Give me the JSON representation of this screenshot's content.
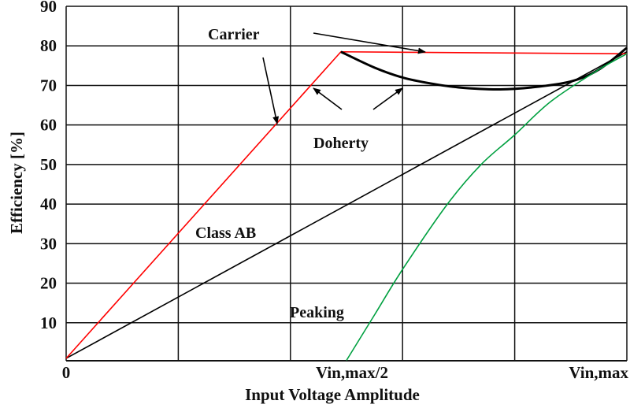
{
  "chart_data": {
    "type": "line",
    "title": "",
    "xlabel": "Input Voltage Amplitude",
    "ylabel": "Efficiency [%]",
    "xlim": [
      0,
      1
    ],
    "ylim": [
      0,
      90
    ],
    "grid": true,
    "x_tick_labels": [
      {
        "x": 0,
        "label": "0"
      },
      {
        "x": 0.5,
        "label": "Vin,max/2"
      },
      {
        "x": 1,
        "label": "Vin,max"
      }
    ],
    "x_gridlines": [
      0,
      0.2,
      0.4,
      0.6,
      0.8,
      1
    ],
    "y_ticks": [
      10,
      20,
      30,
      40,
      50,
      60,
      70,
      80,
      90
    ],
    "series": [
      {
        "name": "Class AB",
        "color": "#000000",
        "x": [
          0,
          1
        ],
        "y": [
          1,
          78.5
        ]
      },
      {
        "name": "Carrier",
        "color": "#ff0000",
        "x": [
          0,
          0.49,
          1
        ],
        "y": [
          1,
          78.5,
          78
        ]
      },
      {
        "name": "Doherty",
        "color": "#000000",
        "x": [
          0.49,
          0.55,
          0.6,
          0.65,
          0.7,
          0.77,
          0.83,
          0.9,
          0.95,
          1
        ],
        "y": [
          78.5,
          74.5,
          72,
          70.5,
          69.5,
          69,
          69.5,
          71,
          74,
          79.5
        ]
      },
      {
        "name": "Peaking",
        "color": "#00a040",
        "x": [
          0.5,
          0.55,
          0.6,
          0.68,
          0.74,
          0.8,
          0.865,
          0.95,
          1
        ],
        "y": [
          0.5,
          12,
          23.5,
          40,
          50,
          57.5,
          66,
          74,
          78
        ]
      }
    ],
    "annotations": [
      {
        "text": "Carrier"
      },
      {
        "text": "Doherty"
      },
      {
        "text": "Class AB"
      },
      {
        "text": "Peaking"
      }
    ]
  }
}
